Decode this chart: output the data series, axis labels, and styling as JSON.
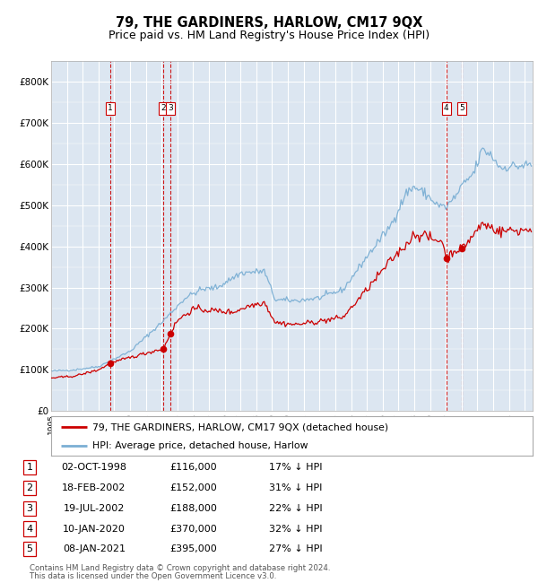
{
  "title": "79, THE GARDINERS, HARLOW, CM17 9QX",
  "subtitle": "Price paid vs. HM Land Registry's House Price Index (HPI)",
  "xlim_start": 1995,
  "xlim_end": 2025.5,
  "ylim": [
    0,
    850000
  ],
  "yticks": [
    0,
    100000,
    200000,
    300000,
    400000,
    500000,
    600000,
    700000,
    800000
  ],
  "ytick_labels": [
    "£0",
    "£100K",
    "£200K",
    "£300K",
    "£400K",
    "£500K",
    "£600K",
    "£700K",
    "£800K"
  ],
  "sales": [
    {
      "num": 1,
      "date_yr": 1998.75,
      "price": 116000
    },
    {
      "num": 2,
      "date_yr": 2002.12,
      "price": 152000
    },
    {
      "num": 3,
      "date_yr": 2002.55,
      "price": 188000
    },
    {
      "num": 4,
      "date_yr": 2020.03,
      "price": 370000
    },
    {
      "num": 5,
      "date_yr": 2021.03,
      "price": 395000
    }
  ],
  "table_rows": [
    {
      "num": 1,
      "date": "02-OCT-1998",
      "price": "£116,000",
      "hpi": "17% ↓ HPI"
    },
    {
      "num": 2,
      "date": "18-FEB-2002",
      "price": "£152,000",
      "hpi": "31% ↓ HPI"
    },
    {
      "num": 3,
      "date": "19-JUL-2002",
      "price": "£188,000",
      "hpi": "22% ↓ HPI"
    },
    {
      "num": 4,
      "date": "10-JAN-2020",
      "price": "£370,000",
      "hpi": "32% ↓ HPI"
    },
    {
      "num": 5,
      "date": "08-JAN-2021",
      "price": "£395,000",
      "hpi": "27% ↓ HPI"
    }
  ],
  "legend_line1": "79, THE GARDINERS, HARLOW, CM17 9QX (detached house)",
  "legend_line2": "HPI: Average price, detached house, Harlow",
  "footer1": "Contains HM Land Registry data © Crown copyright and database right 2024.",
  "footer2": "This data is licensed under the Open Government Licence v3.0.",
  "red_line_color": "#cc0000",
  "blue_line_color": "#7bafd4",
  "marker_color": "#cc0000",
  "vline_color": "#cc0000",
  "plot_bg": "#dce6f1",
  "grid_color": "#ffffff"
}
